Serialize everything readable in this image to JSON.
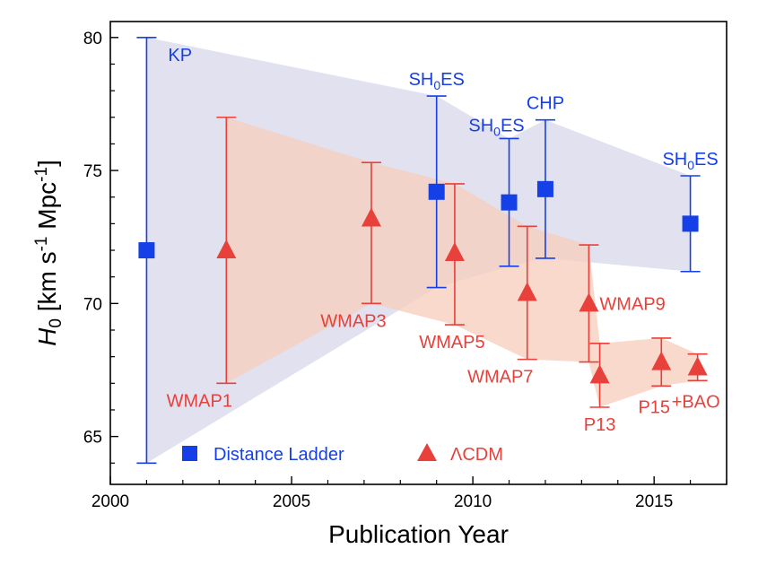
{
  "chart_data": {
    "type": "scatter",
    "xlabel": "Publication Year",
    "ylabel": "H0 [km s-1 Mpc-1]",
    "ylabel_parts": {
      "main": "H",
      "main_sub": "0",
      "units_a": " [km s",
      "exp1": "-1",
      "units_b": " Mpc",
      "exp2": "-1",
      "units_c": "]"
    },
    "xlim": [
      2000,
      2017
    ],
    "ylim": [
      63.2,
      80.6
    ],
    "xticks": [
      2000,
      2005,
      2010,
      2015
    ],
    "yticks": [
      65,
      70,
      75,
      80
    ],
    "legend_position": "bottom-left",
    "series": [
      {
        "name": "Distance Ladder",
        "color": "#1540e8",
        "marker": "square",
        "band_color": "#dcdcec",
        "points": [
          {
            "label": "KP",
            "sub": "",
            "label_tail": "",
            "x": 2001.0,
            "y": 72.0,
            "err_low": 64.0,
            "err_high": 80.0,
            "label_pos": "top-right"
          },
          {
            "label": "SH",
            "sub": "0",
            "label_tail": "ES",
            "x": 2009.0,
            "y": 74.2,
            "err_low": 70.6,
            "err_high": 77.8,
            "label_pos": "top"
          },
          {
            "label": "SH",
            "sub": "0",
            "label_tail": "ES",
            "x": 2011.0,
            "y": 73.8,
            "err_low": 71.4,
            "err_high": 76.2,
            "label_pos": "top"
          },
          {
            "label": "CHP",
            "sub": "",
            "label_tail": "",
            "x": 2012.0,
            "y": 74.3,
            "err_low": 71.7,
            "err_high": 76.9,
            "label_pos": "top"
          },
          {
            "label": "SH",
            "sub": "0",
            "label_tail": "ES",
            "x": 2016.0,
            "y": 73.0,
            "err_low": 71.2,
            "err_high": 74.8,
            "label_pos": "top"
          }
        ]
      },
      {
        "name": "ΛCDM",
        "color": "#e8403a",
        "marker": "triangle",
        "band_color": "#f6cfbf",
        "points": [
          {
            "label": "WMAP1",
            "sub": "",
            "label_tail": "",
            "x": 2003.2,
            "y": 72.0,
            "err_low": 67.0,
            "err_high": 77.0,
            "label_pos": "below"
          },
          {
            "label": "WMAP3",
            "sub": "",
            "label_tail": "",
            "x": 2007.2,
            "y": 73.2,
            "err_low": 70.0,
            "err_high": 75.3,
            "label_pos": "below"
          },
          {
            "label": "WMAP5",
            "sub": "",
            "label_tail": "",
            "x": 2009.5,
            "y": 71.9,
            "err_low": 69.2,
            "err_high": 74.5,
            "label_pos": "below"
          },
          {
            "label": "WMAP7",
            "sub": "",
            "label_tail": "",
            "x": 2011.5,
            "y": 70.4,
            "err_low": 67.9,
            "err_high": 72.9,
            "label_pos": "below"
          },
          {
            "label": "WMAP9",
            "sub": "",
            "label_tail": "",
            "x": 2013.2,
            "y": 70.0,
            "err_low": 67.8,
            "err_high": 72.2,
            "label_pos": "right"
          },
          {
            "label": "P13",
            "sub": "",
            "label_tail": "",
            "x": 2013.5,
            "y": 67.3,
            "err_low": 66.1,
            "err_high": 68.5,
            "label_pos": "below"
          },
          {
            "label": "P15",
            "sub": "",
            "label_tail": "",
            "x": 2015.2,
            "y": 67.8,
            "err_low": 66.9,
            "err_high": 68.7,
            "label_pos": "below-left"
          },
          {
            "label": "+BAO",
            "sub": "",
            "label_tail": "",
            "x": 2016.2,
            "y": 67.6,
            "err_low": 67.1,
            "err_high": 68.1,
            "label_pos": "below"
          }
        ]
      }
    ]
  }
}
